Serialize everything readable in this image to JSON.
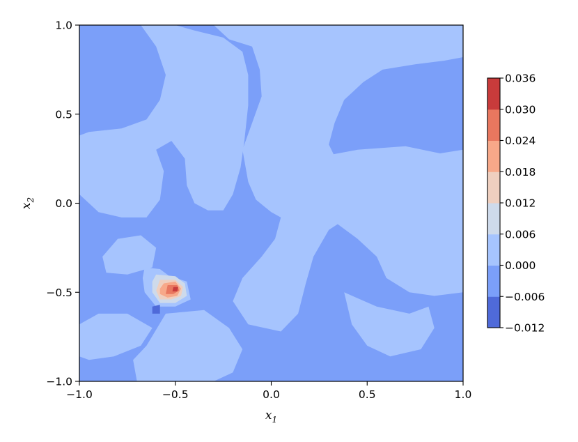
{
  "chart_data": {
    "type": "contourf",
    "title": "",
    "xlabel": {
      "base": "x",
      "sub": "1"
    },
    "ylabel": {
      "base": "x",
      "sub": "2"
    },
    "xlim": [
      -1.0,
      1.0
    ],
    "ylim": [
      -1.0,
      1.0
    ],
    "x_ticks": [
      -1.0,
      -0.5,
      0.0,
      0.5,
      1.0
    ],
    "x_tick_labels": [
      "−1.0",
      "−0.5",
      "0.0",
      "0.5",
      "1.0"
    ],
    "y_ticks": [
      -1.0,
      -0.5,
      0.0,
      0.5,
      1.0
    ],
    "y_tick_labels": [
      "−1.0",
      "−0.5",
      "0.0",
      "0.5",
      "1.0"
    ],
    "grid": false,
    "colormap": "coolwarm",
    "colorbar": {
      "levels": [
        -0.012,
        -0.006,
        0.0,
        0.006,
        0.012,
        0.018,
        0.024,
        0.03,
        0.036
      ],
      "tick_labels": [
        "−0.012",
        "−0.006",
        "0.000",
        "0.006",
        "0.012",
        "0.018",
        "0.024",
        "0.030",
        "0.036"
      ],
      "band_colors": [
        "#4f6ad9",
        "#7b9ff9",
        "#a6c4fe",
        "#cedaeb",
        "#efcfbf",
        "#f7a889",
        "#e8775f",
        "#c83b3b"
      ],
      "placement": "right"
    },
    "background_level_band": 1,
    "regions": [
      {
        "band": 2,
        "points": [
          [
            -0.68,
            1.0
          ],
          [
            -0.6,
            0.88
          ],
          [
            -0.55,
            0.72
          ],
          [
            -0.58,
            0.58
          ],
          [
            -0.65,
            0.47
          ],
          [
            -0.78,
            0.42
          ],
          [
            -0.95,
            0.4
          ],
          [
            -1.0,
            0.38
          ],
          [
            -1.0,
            0.05
          ],
          [
            -0.9,
            -0.05
          ],
          [
            -0.78,
            -0.08
          ],
          [
            -0.65,
            -0.08
          ],
          [
            -0.58,
            0.02
          ],
          [
            -0.56,
            0.18
          ],
          [
            -0.6,
            0.3
          ],
          [
            -0.52,
            0.35
          ],
          [
            -0.45,
            0.25
          ],
          [
            -0.44,
            0.1
          ],
          [
            -0.4,
            0.0
          ],
          [
            -0.33,
            -0.04
          ],
          [
            -0.25,
            -0.04
          ],
          [
            -0.2,
            0.05
          ],
          [
            -0.16,
            0.2
          ],
          [
            -0.14,
            0.35
          ],
          [
            -0.12,
            0.55
          ],
          [
            -0.12,
            0.72
          ],
          [
            -0.15,
            0.85
          ],
          [
            -0.25,
            0.93
          ],
          [
            -0.4,
            0.97
          ],
          [
            -0.5,
            1.0
          ]
        ]
      },
      {
        "band": 2,
        "points": [
          [
            -0.3,
            1.0
          ],
          [
            -0.22,
            0.92
          ],
          [
            -0.1,
            0.88
          ],
          [
            -0.06,
            0.75
          ],
          [
            -0.05,
            0.6
          ],
          [
            -0.1,
            0.45
          ],
          [
            -0.15,
            0.3
          ],
          [
            -0.12,
            0.12
          ],
          [
            -0.08,
            0.02
          ],
          [
            0.0,
            -0.05
          ],
          [
            0.05,
            -0.08
          ],
          [
            0.02,
            -0.2
          ],
          [
            -0.05,
            -0.3
          ],
          [
            -0.15,
            -0.42
          ],
          [
            -0.2,
            -0.55
          ],
          [
            -0.12,
            -0.68
          ],
          [
            0.05,
            -0.72
          ],
          [
            0.14,
            -0.62
          ],
          [
            0.18,
            -0.45
          ],
          [
            0.22,
            -0.3
          ],
          [
            0.3,
            -0.15
          ],
          [
            0.4,
            -0.08
          ],
          [
            0.5,
            0.02
          ],
          [
            0.55,
            0.12
          ],
          [
            0.45,
            0.15
          ],
          [
            0.35,
            0.22
          ],
          [
            0.3,
            0.33
          ],
          [
            0.33,
            0.45
          ],
          [
            0.38,
            0.58
          ],
          [
            0.48,
            0.68
          ],
          [
            0.58,
            0.75
          ],
          [
            0.75,
            0.78
          ],
          [
            0.9,
            0.8
          ],
          [
            1.0,
            0.82
          ],
          [
            1.0,
            1.0
          ]
        ]
      },
      {
        "band": 2,
        "points": [
          [
            0.2,
            0.25
          ],
          [
            0.45,
            0.3
          ],
          [
            0.7,
            0.32
          ],
          [
            0.88,
            0.28
          ],
          [
            1.0,
            0.3
          ],
          [
            1.0,
            -0.5
          ],
          [
            0.85,
            -0.52
          ],
          [
            0.72,
            -0.5
          ],
          [
            0.6,
            -0.42
          ],
          [
            0.55,
            -0.3
          ],
          [
            0.45,
            -0.2
          ],
          [
            0.35,
            -0.12
          ],
          [
            0.25,
            -0.05
          ],
          [
            0.2,
            0.08
          ]
        ]
      },
      {
        "band": 2,
        "points": [
          [
            0.38,
            -0.5
          ],
          [
            0.55,
            -0.58
          ],
          [
            0.72,
            -0.62
          ],
          [
            0.82,
            -0.58
          ],
          [
            0.85,
            -0.7
          ],
          [
            0.78,
            -0.82
          ],
          [
            0.62,
            -0.86
          ],
          [
            0.5,
            -0.8
          ],
          [
            0.42,
            -0.68
          ]
        ]
      },
      {
        "band": 2,
        "points": [
          [
            -0.88,
            -0.3
          ],
          [
            -0.8,
            -0.2
          ],
          [
            -0.68,
            -0.18
          ],
          [
            -0.6,
            -0.25
          ],
          [
            -0.62,
            -0.36
          ],
          [
            -0.75,
            -0.4
          ],
          [
            -0.86,
            -0.39
          ]
        ]
      },
      {
        "band": 2,
        "points": [
          [
            -1.0,
            -0.68
          ],
          [
            -0.9,
            -0.62
          ],
          [
            -0.75,
            -0.62
          ],
          [
            -0.62,
            -0.7
          ],
          [
            -0.68,
            -0.8
          ],
          [
            -0.82,
            -0.86
          ],
          [
            -0.95,
            -0.88
          ],
          [
            -1.0,
            -0.86
          ]
        ]
      },
      {
        "band": 2,
        "points": [
          [
            -0.55,
            -0.62
          ],
          [
            -0.35,
            -0.6
          ],
          [
            -0.22,
            -0.7
          ],
          [
            -0.15,
            -0.82
          ],
          [
            -0.2,
            -0.95
          ],
          [
            -0.3,
            -1.0
          ],
          [
            -0.7,
            -1.0
          ],
          [
            -0.72,
            -0.88
          ],
          [
            -0.65,
            -0.8
          ]
        ]
      },
      {
        "band": 2,
        "points": [
          [
            -0.66,
            -0.36
          ],
          [
            -0.58,
            -0.37
          ],
          [
            -0.53,
            -0.41
          ],
          [
            -0.44,
            -0.44
          ],
          [
            -0.42,
            -0.54
          ],
          [
            -0.5,
            -0.58
          ],
          [
            -0.6,
            -0.58
          ],
          [
            -0.66,
            -0.5
          ],
          [
            -0.67,
            -0.42
          ]
        ]
      },
      {
        "band": 3,
        "points": [
          [
            -0.6,
            -0.4
          ],
          [
            -0.5,
            -0.41
          ],
          [
            -0.45,
            -0.45
          ],
          [
            -0.44,
            -0.52
          ],
          [
            -0.5,
            -0.56
          ],
          [
            -0.58,
            -0.56
          ],
          [
            -0.62,
            -0.5
          ],
          [
            -0.62,
            -0.44
          ]
        ]
      },
      {
        "band": 4,
        "points": [
          [
            -0.58,
            -0.43
          ],
          [
            -0.5,
            -0.43
          ],
          [
            -0.46,
            -0.47
          ],
          [
            -0.47,
            -0.52
          ],
          [
            -0.52,
            -0.54
          ],
          [
            -0.58,
            -0.54
          ],
          [
            -0.6,
            -0.49
          ]
        ]
      },
      {
        "band": 5,
        "points": [
          [
            -0.56,
            -0.45
          ],
          [
            -0.5,
            -0.44
          ],
          [
            -0.47,
            -0.48
          ],
          [
            -0.49,
            -0.52
          ],
          [
            -0.54,
            -0.53
          ],
          [
            -0.58,
            -0.51
          ],
          [
            -0.58,
            -0.48
          ]
        ]
      },
      {
        "band": 6,
        "points": [
          [
            -0.54,
            -0.46
          ],
          [
            -0.49,
            -0.46
          ],
          [
            -0.48,
            -0.49
          ],
          [
            -0.51,
            -0.51
          ],
          [
            -0.55,
            -0.51
          ]
        ]
      },
      {
        "band": 7,
        "points": [
          [
            -0.51,
            -0.47
          ],
          [
            -0.485,
            -0.47
          ],
          [
            -0.49,
            -0.495
          ],
          [
            -0.515,
            -0.495
          ]
        ]
      },
      {
        "band": 0,
        "points": [
          [
            -0.62,
            -0.58
          ],
          [
            -0.58,
            -0.57
          ],
          [
            -0.58,
            -0.62
          ],
          [
            -0.62,
            -0.62
          ]
        ]
      }
    ]
  }
}
